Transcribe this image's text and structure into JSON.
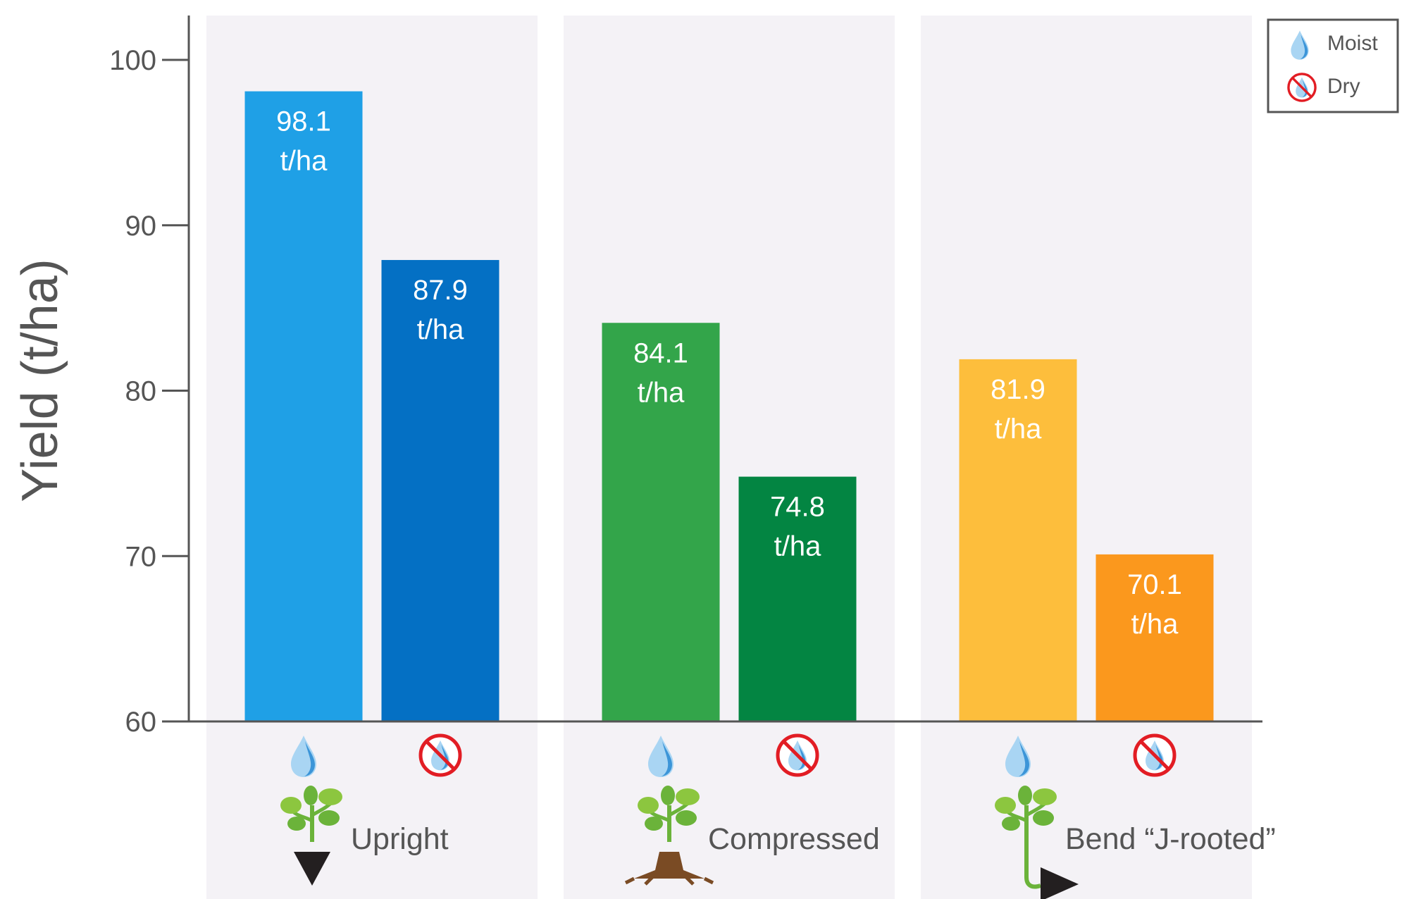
{
  "chart_data": {
    "type": "bar",
    "ylabel": "Yield (t/ha)",
    "ylim": [
      60,
      100
    ],
    "yticks": [
      60,
      70,
      80,
      90,
      100
    ],
    "grid": false,
    "legend_position": "top-right",
    "categories": [
      "Upright",
      "Compressed",
      "Bend “J-rooted”"
    ],
    "series": [
      {
        "name": "Moist",
        "icon": "water-drop-icon",
        "values": [
          98.1,
          84.1,
          81.9
        ]
      },
      {
        "name": "Dry",
        "icon": "no-water-icon",
        "values": [
          87.9,
          74.8,
          70.1
        ]
      }
    ],
    "bar_colors": [
      [
        "#1fa0e6",
        "#0470c4"
      ],
      [
        "#33a54a",
        "#038542"
      ],
      [
        "#fdbe3c",
        "#fb981d"
      ]
    ],
    "value_unit": "t/ha",
    "category_icons": [
      "upright-plant-icon",
      "compressed-plant-icon",
      "j-rooted-plant-icon"
    ]
  }
}
